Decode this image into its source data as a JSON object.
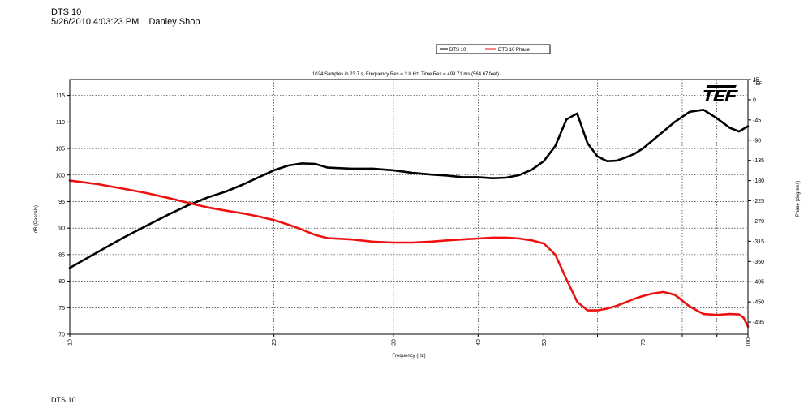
{
  "header": {
    "title": "DTS 10",
    "subtitle": "5/26/2010 4:03:23 PM    Danley Shop"
  },
  "footer_text": "DTS 10",
  "chart_data": {
    "type": "line",
    "title": "1024 Samples in 23.7 s, Frequency Res = 2.0 Hz, Time Res = 499.71 ms (564.67 feet)",
    "xlabel": "Frequency (Hz)",
    "ylabel": "dB (Pascals)",
    "y2label": "Phase (degrees)",
    "x_scale": "log",
    "xlim": [
      10,
      100
    ],
    "ylim": [
      70,
      118
    ],
    "y2lim": [
      -522,
      45
    ],
    "x_ticks": [
      10,
      20,
      30,
      40,
      50,
      60,
      70,
      80,
      90,
      100
    ],
    "x_tick_labels": [
      "10",
      "20",
      "30",
      "40",
      "50",
      "70",
      "100"
    ],
    "x_labeled_ticks": [
      10,
      20,
      30,
      40,
      50,
      70,
      100
    ],
    "y_ticks": [
      70,
      75,
      80,
      85,
      90,
      95,
      100,
      105,
      110,
      115
    ],
    "y2_ticks": [
      45,
      0,
      -45,
      -90,
      -135,
      -180,
      -225,
      -270,
      -315,
      -360,
      -405,
      -450,
      -495
    ],
    "grid": true,
    "legend": {
      "position": "top-center",
      "entries": [
        "DTS 10",
        "DTS 10  Phase"
      ]
    },
    "logo": "TEF",
    "series": [
      {
        "name": "DTS 10",
        "axis": "left",
        "color": "#000000",
        "x": [
          10,
          11,
          12,
          13,
          14,
          15,
          16,
          17,
          18,
          19,
          20,
          21,
          22,
          23,
          24,
          26,
          28,
          30,
          32,
          34,
          36,
          38,
          40,
          42,
          44,
          46,
          48,
          50,
          52,
          54,
          56,
          58,
          60,
          62,
          64,
          66,
          68,
          70,
          72,
          75,
          78,
          82,
          86,
          90,
          94,
          97,
          100
        ],
        "values": [
          82.5,
          85.5,
          88.2,
          90.5,
          92.6,
          94.4,
          95.8,
          96.9,
          98.2,
          99.6,
          100.9,
          101.8,
          102.2,
          102.1,
          101.4,
          101.2,
          101.2,
          100.9,
          100.4,
          100.1,
          99.9,
          99.6,
          99.6,
          99.4,
          99.5,
          100.0,
          101.0,
          102.6,
          105.5,
          110.5,
          111.6,
          106.0,
          103.5,
          102.6,
          102.7,
          103.3,
          104.0,
          105.0,
          106.3,
          108.2,
          110.0,
          111.9,
          112.3,
          110.7,
          108.9,
          108.2,
          109.2
        ]
      },
      {
        "name": "DTS 10  Phase",
        "axis": "right",
        "color": "#ee1111",
        "x": [
          10,
          11,
          12,
          13,
          14,
          15,
          16,
          17,
          18,
          19,
          20,
          21,
          22,
          23,
          24,
          26,
          28,
          30,
          32,
          34,
          36,
          38,
          40,
          42,
          44,
          46,
          48,
          50,
          52,
          54,
          56,
          58,
          60,
          62,
          64,
          66,
          68,
          70,
          72,
          75,
          78,
          82,
          86,
          90,
          94,
          97,
          98.5,
          100
        ],
        "values": [
          -180,
          -188,
          -198,
          -208,
          -219,
          -230,
          -240,
          -247,
          -253,
          -260,
          -268,
          -278,
          -289,
          -301,
          -308,
          -311,
          -316,
          -318,
          -318,
          -316,
          -313,
          -311,
          -309,
          -307,
          -307,
          -309,
          -313,
          -320,
          -345,
          -400,
          -450,
          -469,
          -469,
          -465,
          -459,
          -451,
          -443,
          -437,
          -432,
          -428,
          -434,
          -460,
          -477,
          -479,
          -477,
          -478,
          -485,
          -505
        ]
      }
    ]
  }
}
